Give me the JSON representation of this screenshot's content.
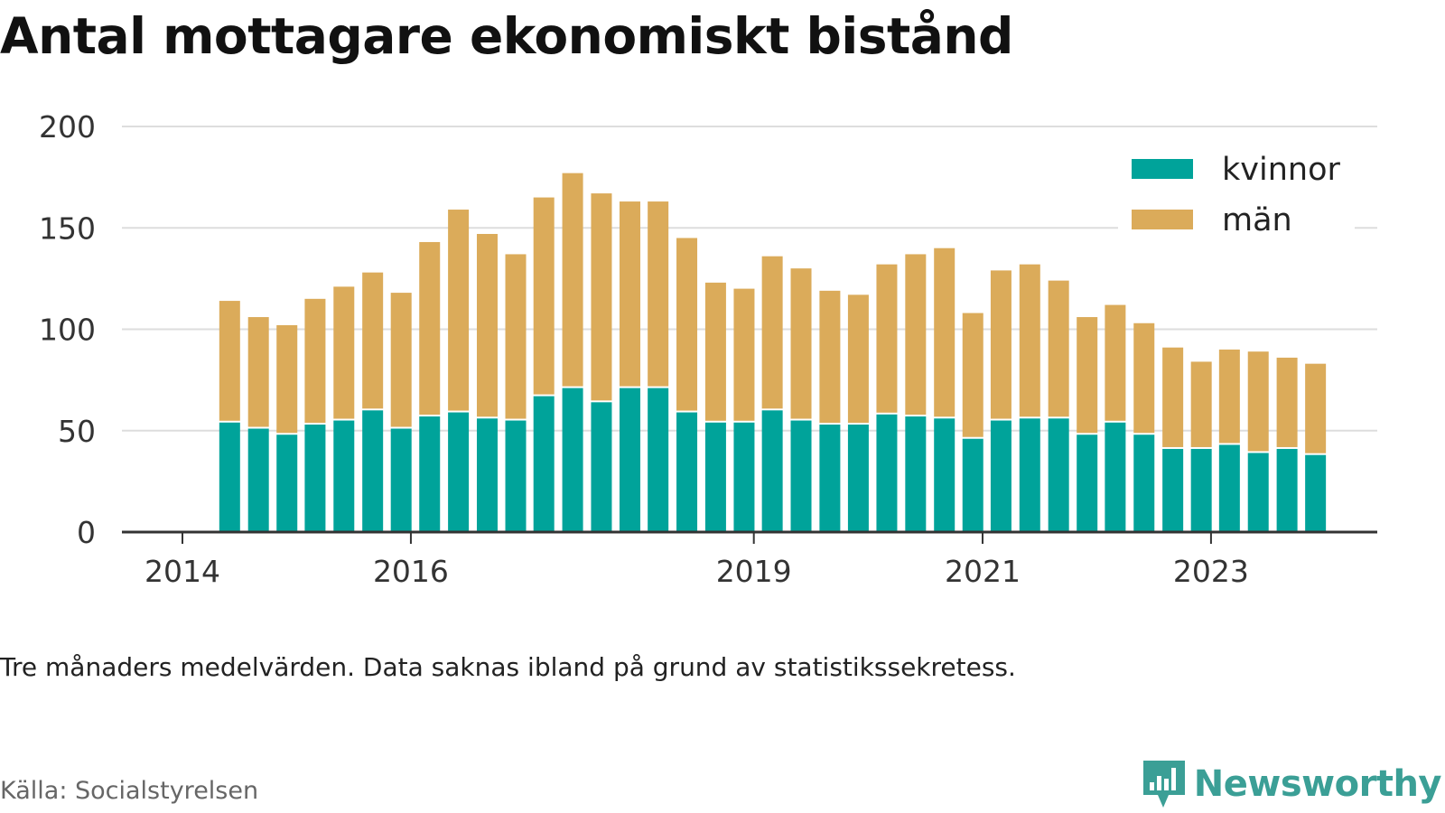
{
  "title": "Antal mottagare ekonomiskt bistånd",
  "note": "Tre månaders medelvärden. Data saknas ibland på grund av statistikssekretess.",
  "source": "Källa: Socialstyrelsen",
  "brand": {
    "name": "Newsworthy",
    "icon": "newsworthy-chart-icon",
    "color": "#3b9f96"
  },
  "colors": {
    "kvinnor": "#00a39a",
    "man": "#dbab5a",
    "grid": "#dddddd",
    "axis": "#333333"
  },
  "chart_data": {
    "type": "bar",
    "stacked": true,
    "xlabel": "",
    "ylabel": "",
    "ylim": [
      0,
      200
    ],
    "yticks": [
      0,
      50,
      100,
      150,
      200
    ],
    "xticks": [
      "2014",
      "2016",
      "2019",
      "2021",
      "2023"
    ],
    "xtick_dates": [
      "2014-01",
      "2016-01",
      "2019-01",
      "2021-01",
      "2023-01"
    ],
    "grid": true,
    "legend_position": "top-right",
    "categories": [
      "2014-06",
      "2014-09",
      "2014-12",
      "2015-03",
      "2015-06",
      "2015-09",
      "2015-12",
      "2016-03",
      "2016-06",
      "2016-09",
      "2016-12",
      "2017-03",
      "2017-06",
      "2017-09",
      "2017-12",
      "2018-03",
      "2018-06",
      "2018-09",
      "2018-12",
      "2019-03",
      "2019-06",
      "2019-09",
      "2019-12",
      "2020-03",
      "2020-06",
      "2020-09",
      "2020-12",
      "2021-03",
      "2021-06",
      "2021-09",
      "2021-12",
      "2022-03",
      "2022-06",
      "2022-09",
      "2022-12",
      "2023-03",
      "2023-06",
      "2023-09",
      "2023-12"
    ],
    "series": [
      {
        "name": "kvinnor",
        "color": "#00a39a",
        "values": [
          54,
          51,
          48,
          53,
          55,
          60,
          51,
          57,
          59,
          56,
          55,
          67,
          71,
          64,
          71,
          71,
          59,
          54,
          54,
          60,
          55,
          53,
          53,
          58,
          57,
          56,
          46,
          55,
          56,
          56,
          48,
          54,
          48,
          41,
          41,
          43,
          39,
          41,
          38
        ]
      },
      {
        "name": "män",
        "color": "#dbab5a",
        "values": [
          60,
          55,
          54,
          62,
          66,
          68,
          67,
          86,
          100,
          91,
          82,
          98,
          106,
          103,
          92,
          92,
          86,
          69,
          66,
          76,
          75,
          66,
          64,
          74,
          80,
          84,
          62,
          74,
          76,
          68,
          58,
          58,
          55,
          50,
          43,
          47,
          50,
          45,
          45
        ]
      }
    ]
  }
}
